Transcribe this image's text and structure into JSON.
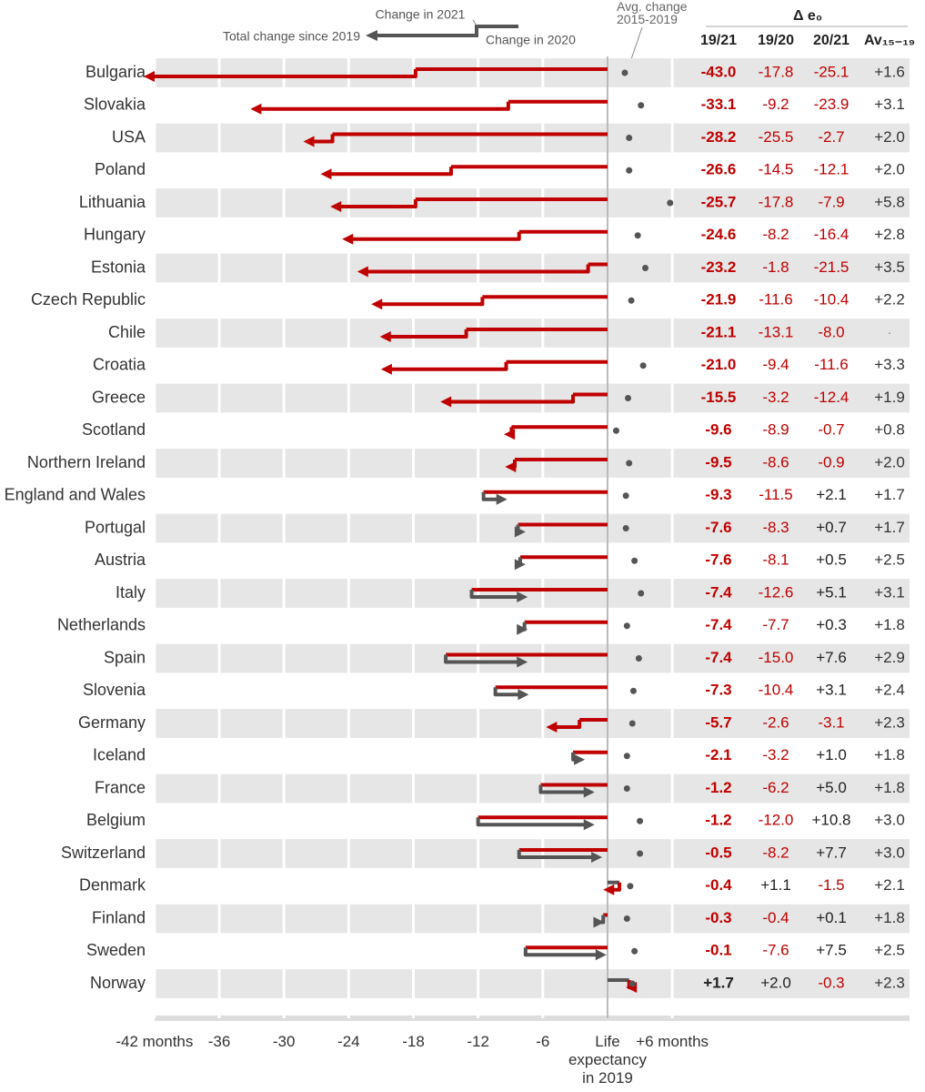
{
  "chart_data": {
    "type": "arrow",
    "categories": [
      "Bulgaria",
      "Slovakia",
      "USA",
      "Poland",
      "Lithuania",
      "Hungary",
      "Estonia",
      "Czech Republic",
      "Chile",
      "Croatia",
      "Greece",
      "Scotland",
      "Northern Ireland",
      "England and Wales",
      "Portugal",
      "Austria",
      "Italy",
      "Netherlands",
      "Spain",
      "Slovenia",
      "Germany",
      "Iceland",
      "France",
      "Belgium",
      "Switzerland",
      "Denmark",
      "Finland",
      "Sweden",
      "Norway"
    ],
    "series": [
      {
        "name": "Total change since 2019",
        "color": "#c00000",
        "values": [
          -43.0,
          -33.1,
          -28.2,
          -26.6,
          -25.7,
          -24.6,
          -23.2,
          -21.9,
          -21.1,
          -21.0,
          -15.5,
          -9.6,
          -9.5,
          -9.3,
          -7.6,
          -7.6,
          -7.4,
          -7.4,
          -7.4,
          -7.3,
          -5.7,
          -2.1,
          -1.2,
          -1.2,
          -0.5,
          -0.4,
          -0.3,
          -0.1,
          1.7
        ],
        "value_labels": [
          "-43.0",
          "-33.1",
          "-28.2",
          "-26.6",
          "-25.7",
          "-24.6",
          "-23.2",
          "-21.9",
          "-21.1",
          "-21.0",
          "-15.5",
          "-9.6",
          "-9.5",
          "-9.3",
          "-7.6",
          "-7.6",
          "-7.4",
          "-7.4",
          "-7.4",
          "-7.3",
          "-5.7",
          "-2.1",
          "-1.2",
          "-1.2",
          "-0.5",
          "-0.4",
          "-0.3",
          "-0.1",
          "+1.7"
        ]
      },
      {
        "name": "Change in 2020",
        "color": "#c00000",
        "values": [
          -17.8,
          -9.2,
          -25.5,
          -14.5,
          -17.8,
          -8.2,
          -1.8,
          -11.6,
          -13.1,
          -9.4,
          -3.2,
          -8.9,
          -8.6,
          -11.5,
          -8.3,
          -8.1,
          -12.6,
          -7.7,
          -15.0,
          -10.4,
          -2.6,
          -3.2,
          -6.2,
          -12.0,
          -8.2,
          1.1,
          -0.4,
          -7.6,
          2.0
        ],
        "value_labels": [
          "-17.8",
          "-9.2",
          "-25.5",
          "-14.5",
          "-17.8",
          "-8.2",
          "-1.8",
          "-11.6",
          "-13.1",
          "-9.4",
          "-3.2",
          "-8.9",
          "-8.6",
          "-11.5",
          "-8.3",
          "-8.1",
          "-12.6",
          "-7.7",
          "-15.0",
          "-10.4",
          "-2.6",
          "-3.2",
          "-6.2",
          "-12.0",
          "-8.2",
          "+1.1",
          "-0.4",
          "-7.6",
          "+2.0"
        ]
      },
      {
        "name": "Change in 2021",
        "color": "#555555",
        "values": [
          -25.1,
          -23.9,
          -2.7,
          -12.1,
          -7.9,
          -16.4,
          -21.5,
          -10.4,
          -8.0,
          -11.6,
          -12.4,
          -0.7,
          -0.9,
          2.1,
          0.7,
          0.5,
          5.1,
          0.3,
          7.6,
          3.1,
          -3.1,
          1.0,
          5.0,
          10.8,
          7.7,
          -1.5,
          0.1,
          7.5,
          -0.3
        ],
        "value_labels": [
          "-25.1",
          "-23.9",
          "-2.7",
          "-12.1",
          "-7.9",
          "-16.4",
          "-21.5",
          "-10.4",
          "-8.0",
          "-11.6",
          "-12.4",
          "-0.7",
          "-0.9",
          "+2.1",
          "+0.7",
          "+0.5",
          "+5.1",
          "+0.3",
          "+7.6",
          "+3.1",
          "-3.1",
          "+1.0",
          "+5.0",
          "+10.8",
          "+7.7",
          "-1.5",
          "+0.1",
          "+7.5",
          "-0.3"
        ]
      },
      {
        "name": "Avg. change 2015-2019",
        "color": "#555555",
        "values": [
          1.6,
          3.1,
          2.0,
          2.0,
          5.8,
          2.8,
          3.5,
          2.2,
          null,
          3.3,
          1.9,
          0.8,
          2.0,
          1.7,
          1.7,
          2.5,
          3.1,
          1.8,
          2.9,
          2.4,
          2.3,
          1.8,
          1.8,
          3.0,
          3.0,
          2.1,
          1.8,
          2.5,
          2.3
        ],
        "value_labels": [
          "+1.6",
          "+3.1",
          "+2.0",
          "+2.0",
          "+5.8",
          "+2.8",
          "+3.5",
          "+2.2",
          "·",
          "+3.3",
          "+1.9",
          "+0.8",
          "+2.0",
          "+1.7",
          "+1.7",
          "+2.5",
          "+3.1",
          "+1.8",
          "+2.9",
          "+2.4",
          "+2.3",
          "+1.8",
          "+1.8",
          "+3.0",
          "+3.0",
          "+2.1",
          "+1.8",
          "+2.5",
          "+2.3"
        ]
      }
    ],
    "table_title": "Δ e₀",
    "columns": [
      "19/21",
      "19/20",
      "20/21",
      "Av₁₅₋₁₉"
    ],
    "negative_color": "#c00000",
    "positive_color": "#555555",
    "xlim": [
      -43,
      7
    ],
    "xticks": [
      {
        "value": -42,
        "label": "-42 months"
      },
      -36,
      -30,
      -24,
      -18,
      -12,
      -6,
      {
        "value": 0,
        "label": "Life expectancy in 2019"
      },
      {
        "value": 6,
        "label": "+6 months"
      }
    ],
    "grid": true
  }
}
